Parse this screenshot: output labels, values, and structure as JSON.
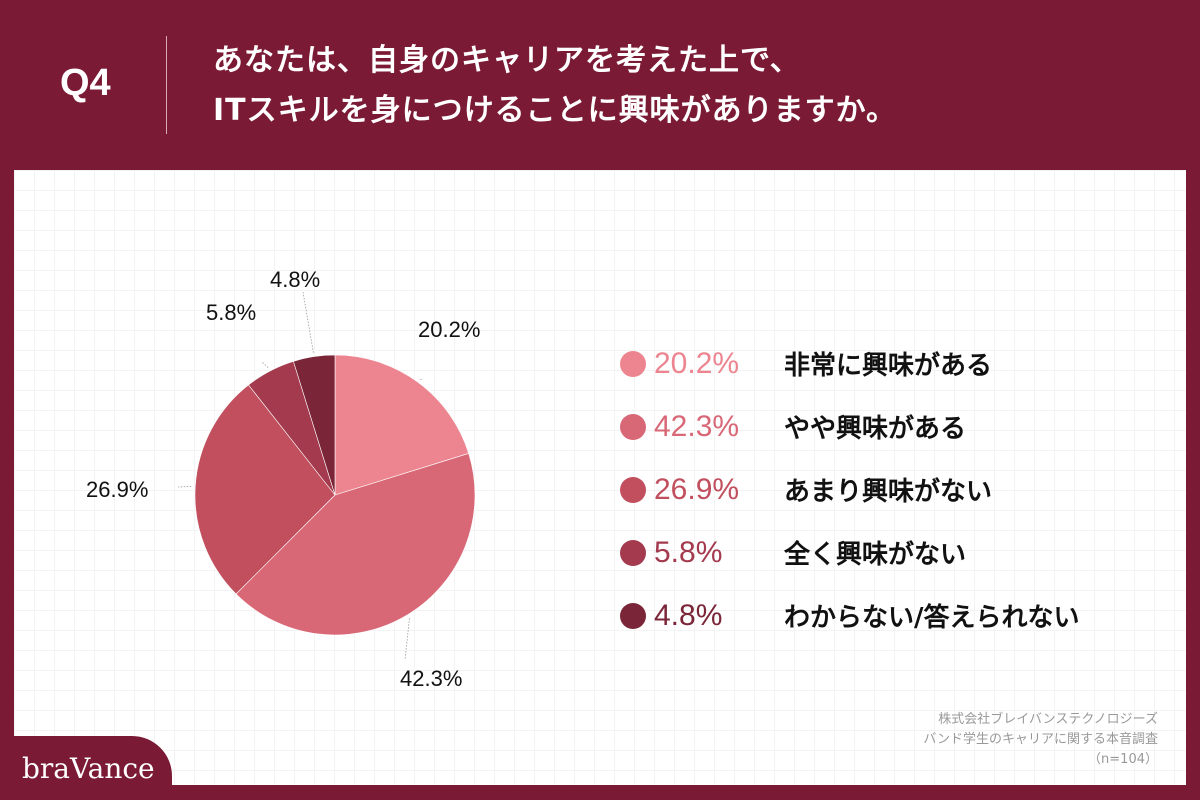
{
  "header": {
    "question_number": "Q4",
    "title_line1": "あなたは、自身のキャリアを考えた上で、",
    "title_line2": "ITスキルを身につけることに興味がありますか。"
  },
  "legend": [
    {
      "pct": "20.2%",
      "label": "非常に興味がある",
      "color": "#ec8590"
    },
    {
      "pct": "42.3%",
      "label": "やや興味がある",
      "color": "#d96877"
    },
    {
      "pct": "26.9%",
      "label": "あまり興味がない",
      "color": "#c14f5e"
    },
    {
      "pct": "5.8%",
      "label": "全く興味がない",
      "color": "#a33a4e"
    },
    {
      "pct": "4.8%",
      "label": "わからない/答えられない",
      "color": "#7b2638"
    }
  ],
  "source": {
    "line1": "株式会社ブレイバンステクノロジーズ",
    "line2": "バンド学生のキャリアに関する本音調査",
    "line3": "（n=104）"
  },
  "logo": "braVance",
  "colors": {
    "brand": "#7b1a35",
    "background": "#ffffff"
  },
  "chart_data": {
    "type": "pie",
    "title": "あなたは、自身のキャリアを考えた上で、ITスキルを身につけることに興味がありますか。",
    "categories": [
      "非常に興味がある",
      "やや興味がある",
      "あまり興味がない",
      "全く興味がない",
      "わからない/答えられない"
    ],
    "values": [
      20.2,
      42.3,
      26.9,
      5.8,
      4.8
    ],
    "colors": [
      "#ec8590",
      "#d96877",
      "#c14f5e",
      "#a33a4e",
      "#7b2638"
    ],
    "data_labels": [
      "20.2%",
      "42.3%",
      "26.9%",
      "5.8%",
      "4.8%"
    ],
    "start_angle": "12 o'clock, clockwise",
    "legend_position": "right",
    "n": 104
  }
}
